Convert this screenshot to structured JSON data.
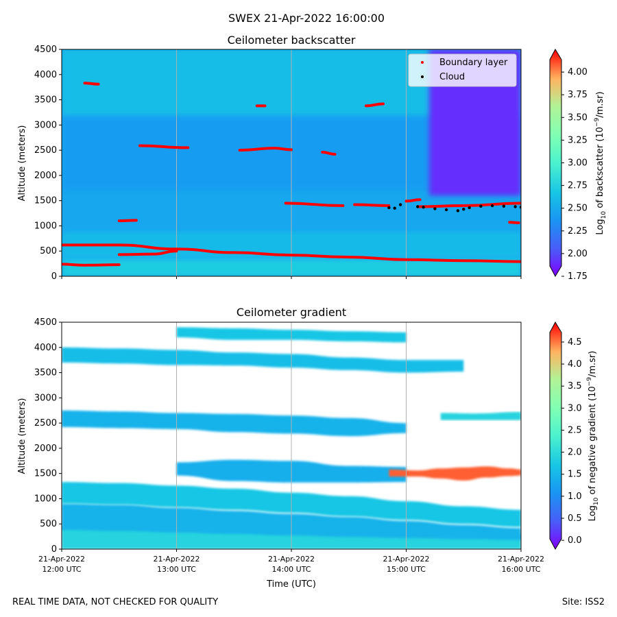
{
  "figure": {
    "suptitle": "SWEX 21-Apr-2022 16:00:00",
    "footer_left": "REAL TIME DATA, NOT CHECKED FOR QUALITY",
    "footer_right": "Site: ISS2"
  },
  "colors": {
    "background": "#00b4e0",
    "cloud_marker": "#000000",
    "boundary_marker": "#ff0000",
    "grid": "#b0b0b0"
  },
  "chart_data": [
    {
      "type": "heatmap",
      "title": "Ceilometer backscatter",
      "xlabel": "",
      "ylabel": "Altitude (meters)",
      "ylim": [
        0,
        4500
      ],
      "yticks": [
        0,
        500,
        1000,
        1500,
        2000,
        2500,
        3000,
        3500,
        4000,
        4500
      ],
      "xlim_hours": [
        12,
        16
      ],
      "xticks": [
        {
          "hour": 12,
          "date": "21-Apr-2022",
          "time": "12:00 UTC"
        },
        {
          "hour": 13,
          "date": "21-Apr-2022",
          "time": "13:00 UTC"
        },
        {
          "hour": 14,
          "date": "21-Apr-2022",
          "time": "14:00 UTC"
        },
        {
          "hour": 15,
          "date": "21-Apr-2022",
          "time": "15:00 UTC"
        },
        {
          "hour": 16,
          "date": "21-Apr-2022",
          "time": "16:00 UTC"
        }
      ],
      "colorbar": {
        "label_prefix": "Log",
        "label_sub": "10",
        "label_mid": " of backscatter (10",
        "label_sup": "−9",
        "label_suffix": "/m.sr)",
        "min": 1.75,
        "max": 4.25,
        "ticks": [
          "4.00",
          "3.75",
          "3.50",
          "3.25",
          "3.00",
          "2.75",
          "2.50",
          "2.25",
          "2.00",
          "1.75"
        ],
        "tick_values": [
          4.0,
          3.75,
          3.5,
          3.25,
          3.0,
          2.75,
          2.5,
          2.25,
          2.0,
          1.75
        ]
      },
      "legend": {
        "position": "top-right",
        "entries": [
          {
            "label": "Boundary layer",
            "color": "#ff0000"
          },
          {
            "label": "Cloud",
            "color": "#000000"
          }
        ]
      },
      "bands": [
        {
          "y0": 0,
          "y1": 350,
          "value": 2.72
        },
        {
          "y0": 350,
          "y1": 900,
          "value": 2.6
        },
        {
          "y0": 900,
          "y1": 1700,
          "value": 2.48
        },
        {
          "y0": 1700,
          "y1": 3200,
          "value": 2.42
        },
        {
          "y0": 3200,
          "y1": 4500,
          "value": 2.62
        }
      ],
      "low_region": {
        "x0": 15.2,
        "x1": 16,
        "y0": 1600,
        "y1": 4500,
        "value": 1.9
      },
      "boundary_layer_segments": [
        [
          [
            12.0,
            620
          ],
          [
            12.5,
            620
          ],
          [
            13.0,
            540
          ],
          [
            13.5,
            470
          ],
          [
            14.0,
            420
          ],
          [
            14.5,
            380
          ],
          [
            15.0,
            330
          ],
          [
            15.5,
            310
          ],
          [
            16.0,
            290
          ]
        ],
        [
          [
            12.0,
            240
          ],
          [
            12.2,
            220
          ],
          [
            12.5,
            230
          ]
        ],
        [
          [
            12.5,
            430
          ],
          [
            12.8,
            440
          ],
          [
            13.0,
            500
          ]
        ],
        [
          [
            12.5,
            1100
          ],
          [
            12.65,
            1110
          ]
        ],
        [
          [
            12.2,
            3830
          ],
          [
            12.32,
            3810
          ]
        ],
        [
          [
            12.68,
            2590
          ],
          [
            13.1,
            2550
          ]
        ],
        [
          [
            13.55,
            2500
          ],
          [
            13.85,
            2540
          ],
          [
            14.0,
            2510
          ]
        ],
        [
          [
            13.7,
            3380
          ],
          [
            13.77,
            3380
          ]
        ],
        [
          [
            14.27,
            2460
          ],
          [
            14.38,
            2420
          ]
        ],
        [
          [
            14.65,
            3380
          ],
          [
            14.8,
            3420
          ]
        ],
        [
          [
            13.95,
            1450
          ],
          [
            14.45,
            1400
          ]
        ],
        [
          [
            14.55,
            1420
          ],
          [
            14.85,
            1400
          ]
        ],
        [
          [
            15.0,
            1490
          ],
          [
            15.12,
            1520
          ]
        ],
        [
          [
            15.1,
            1380
          ],
          [
            15.5,
            1400
          ],
          [
            16.0,
            1450
          ]
        ],
        [
          [
            15.9,
            1070
          ],
          [
            15.98,
            1060
          ]
        ]
      ],
      "cloud_points": [
        [
          14.85,
          1360
        ],
        [
          14.9,
          1350
        ],
        [
          14.95,
          1420
        ],
        [
          15.1,
          1380
        ],
        [
          15.15,
          1370
        ],
        [
          15.25,
          1340
        ],
        [
          15.35,
          1320
        ],
        [
          15.45,
          1300
        ],
        [
          15.5,
          1330
        ],
        [
          15.55,
          1360
        ],
        [
          15.65,
          1390
        ],
        [
          15.75,
          1400
        ],
        [
          15.85,
          1390
        ],
        [
          15.95,
          1380
        ],
        [
          16.0,
          1370
        ]
      ]
    },
    {
      "type": "heatmap",
      "title": "Ceilometer gradient",
      "xlabel": "Time (UTC)",
      "ylabel": "Altitude (meters)",
      "ylim": [
        0,
        4500
      ],
      "yticks": [
        0,
        500,
        1000,
        1500,
        2000,
        2500,
        3000,
        3500,
        4000,
        4500
      ],
      "xlim_hours": [
        12,
        16
      ],
      "xticks": [
        {
          "hour": 12,
          "date": "21-Apr-2022",
          "time": "12:00 UTC"
        },
        {
          "hour": 13,
          "date": "21-Apr-2022",
          "time": "13:00 UTC"
        },
        {
          "hour": 14,
          "date": "21-Apr-2022",
          "time": "14:00 UTC"
        },
        {
          "hour": 15,
          "date": "21-Apr-2022",
          "time": "15:00 UTC"
        },
        {
          "hour": 16,
          "date": "21-Apr-2022",
          "time": "16:00 UTC"
        }
      ],
      "colorbar": {
        "label_prefix": "Log",
        "label_sub": "10",
        "label_mid": " of negative gradient (10",
        "label_sup": "−9",
        "label_suffix": "/m.sr)",
        "min": -0.2,
        "max": 4.95,
        "ticks": [
          "4.5",
          "4.0",
          "3.5",
          "3.0",
          "2.5",
          "2.0",
          "1.5",
          "1.0",
          "0.5",
          "0.0"
        ],
        "tick_values": [
          4.5,
          4.0,
          3.5,
          3.0,
          2.5,
          2.0,
          1.5,
          1.0,
          0.5,
          0.0
        ]
      },
      "bands": [
        {
          "x": [
            12,
            12.5,
            13,
            13.5,
            14,
            14.5,
            15,
            15.5,
            16
          ],
          "top": [
            440,
            440,
            440,
            420,
            400,
            380,
            360,
            330,
            300
          ],
          "bottom": [
            0,
            0,
            0,
            0,
            0,
            0,
            0,
            0,
            0
          ],
          "value": 1.9
        },
        {
          "x": [
            12,
            12.5,
            13,
            13.5,
            14,
            14.5,
            15,
            15.5,
            16
          ],
          "top": [
            900,
            880,
            820,
            760,
            700,
            640,
            560,
            480,
            420
          ],
          "bottom": [
            380,
            360,
            330,
            300,
            270,
            240,
            220,
            200,
            180
          ],
          "value": 1.45
        },
        {
          "x": [
            12,
            12.5,
            13,
            13.5,
            14,
            14.5,
            15,
            15.5,
            16
          ],
          "top": [
            1330,
            1310,
            1260,
            1200,
            1120,
            1050,
            950,
            850,
            780
          ],
          "bottom": [
            900,
            880,
            830,
            780,
            720,
            650,
            580,
            500,
            440
          ],
          "value": 1.7
        },
        {
          "x": [
            13,
            13.5,
            14,
            14.5,
            15
          ],
          "top": [
            1720,
            1770,
            1750,
            1650,
            1630
          ],
          "bottom": [
            1460,
            1350,
            1320,
            1320,
            1330
          ],
          "value": 1.4
        },
        {
          "x": [
            12,
            12.5,
            13,
            13.5,
            14,
            14.5,
            15
          ],
          "top": [
            2750,
            2730,
            2700,
            2680,
            2650,
            2600,
            2500
          ],
          "bottom": [
            2420,
            2400,
            2380,
            2320,
            2290,
            2240,
            2300
          ],
          "value": 1.45
        },
        {
          "x": [
            12,
            12.5,
            13,
            13.5,
            14,
            14.5,
            15,
            15.5
          ],
          "top": [
            4000,
            3980,
            3950,
            3900,
            3870,
            3800,
            3750,
            3750
          ],
          "bottom": [
            3700,
            3680,
            3650,
            3640,
            3600,
            3550,
            3500,
            3520
          ],
          "value": 1.6
        },
        {
          "x": [
            13,
            13.5,
            14,
            14.5,
            15
          ],
          "top": [
            4400,
            4380,
            4350,
            4320,
            4300
          ],
          "bottom": [
            4200,
            4150,
            4150,
            4120,
            4100
          ],
          "value": 1.7
        },
        {
          "x": [
            15.3,
            15.6,
            16
          ],
          "top": [
            2700,
            2690,
            2720
          ],
          "bottom": [
            2560,
            2560,
            2560
          ],
          "value": 1.9
        }
      ],
      "hot_layer": {
        "x": [
          14.85,
          15.1,
          15.3,
          15.5,
          15.7,
          15.9,
          16.0
        ],
        "top": [
          1580,
          1560,
          1600,
          1620,
          1640,
          1600,
          1580
        ],
        "bottom": [
          1440,
          1440,
          1400,
          1360,
          1420,
          1450,
          1460
        ],
        "value": 4.6
      }
    }
  ]
}
